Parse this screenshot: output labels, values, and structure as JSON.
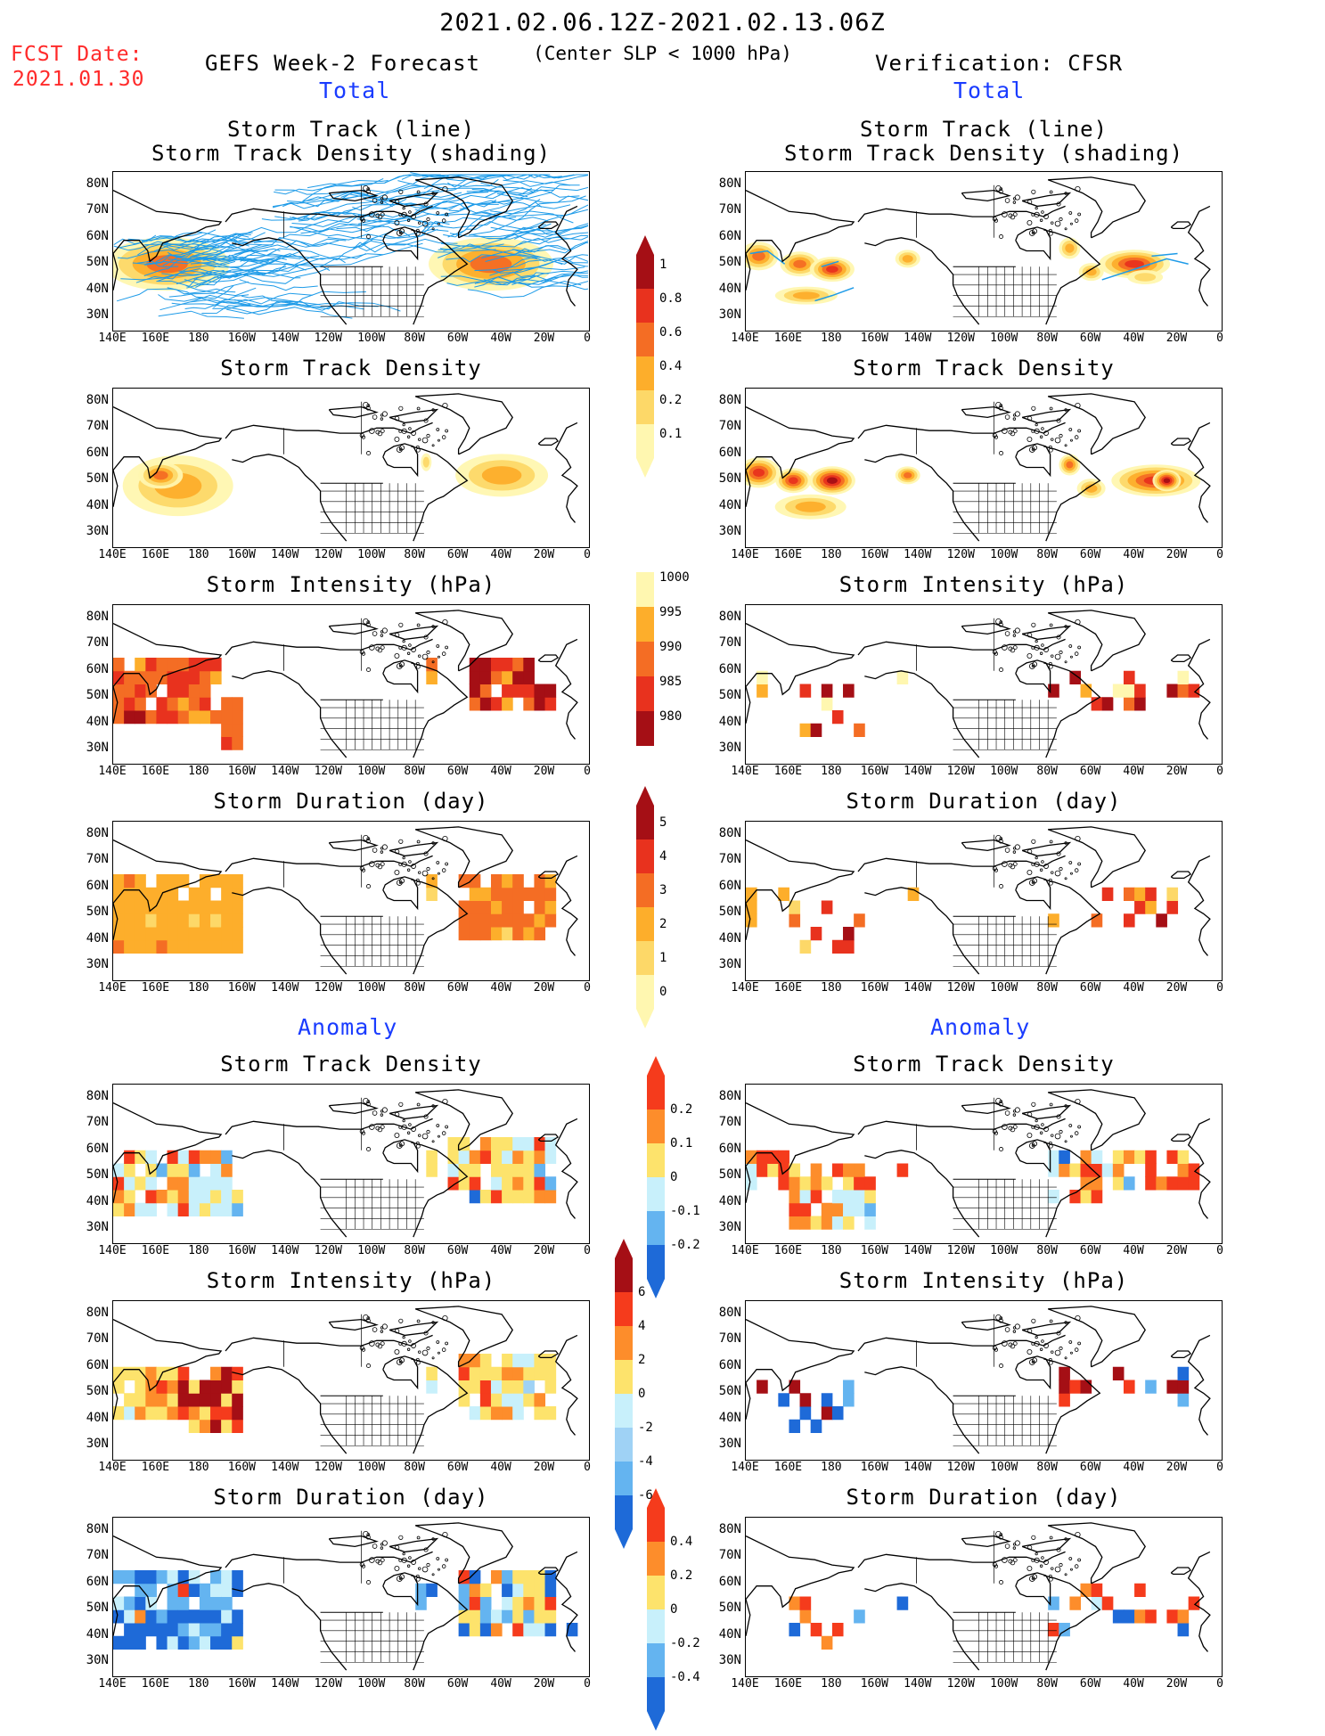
{
  "header": {
    "period": "2021.02.06.12Z-2021.02.13.06Z",
    "criterion": "(Center SLP < 1000 hPa)",
    "fcst_label": "FCST Date:",
    "fcst_date": "2021.01.30",
    "left_model": "GEFS Week-2 Forecast",
    "right_model": "Verification: CFSR"
  },
  "sections": {
    "total": "Total",
    "anomaly": "Anomaly"
  },
  "panel_titles": {
    "track_line": "Storm Track (line)",
    "track_shading": "Storm Track Density (shading)",
    "density": "Storm Track Density",
    "intensity": "Storm Intensity (hPa)",
    "duration": "Storm Duration (day)"
  },
  "axes": {
    "lat_labels": [
      "80N",
      "70N",
      "60N",
      "50N",
      "40N",
      "30N"
    ],
    "lon_labels": [
      "140E",
      "160E",
      "180",
      "160W",
      "140W",
      "120W",
      "100W",
      "80W",
      "60W",
      "40W",
      "20W",
      "0"
    ]
  },
  "colorbars": {
    "density_total": {
      "labels": [
        "1",
        "0.8",
        "0.6",
        "0.4",
        "0.2",
        "0.1"
      ],
      "colors": [
        "#a50f15",
        "#e8321e",
        "#f46d24",
        "#fdae2b",
        "#fdd868",
        "#fff7b0"
      ]
    },
    "intensity_total": {
      "labels": [
        "1000",
        "995",
        "990",
        "985",
        "980"
      ],
      "colors": [
        "#fff7b0",
        "#fdae2b",
        "#f46d24",
        "#e8321e",
        "#a50f15"
      ]
    },
    "duration_total": {
      "labels": [
        "5",
        "4",
        "3",
        "2",
        "1",
        "0"
      ],
      "colors": [
        "#a50f15",
        "#e8321e",
        "#f46d24",
        "#fdae2b",
        "#fdd868",
        "#fff7b0"
      ]
    },
    "density_anom": {
      "labels": [
        "0.2",
        "0.1",
        "0",
        "-0.1",
        "-0.2"
      ],
      "colors": [
        "#f53b1c",
        "#fd8d2b",
        "#fde36c",
        "#c8f0fb",
        "#64b4f0",
        "#1e6ad8"
      ]
    },
    "intensity_anom": {
      "labels": [
        "6",
        "4",
        "2",
        "0",
        "-2",
        "-4",
        "-6"
      ],
      "colors": [
        "#a50f15",
        "#f53b1c",
        "#fd8d2b",
        "#fde36c",
        "#c8f0fb",
        "#9fd2f5",
        "#64b4f0",
        "#1e6ad8"
      ]
    },
    "duration_anom": {
      "labels": [
        "0.4",
        "0.2",
        "0",
        "-0.2",
        "-0.4"
      ],
      "colors": [
        "#f53b1c",
        "#fd8d2b",
        "#fde36c",
        "#c8f0fb",
        "#64b4f0",
        "#1e6ad8"
      ]
    }
  }
}
